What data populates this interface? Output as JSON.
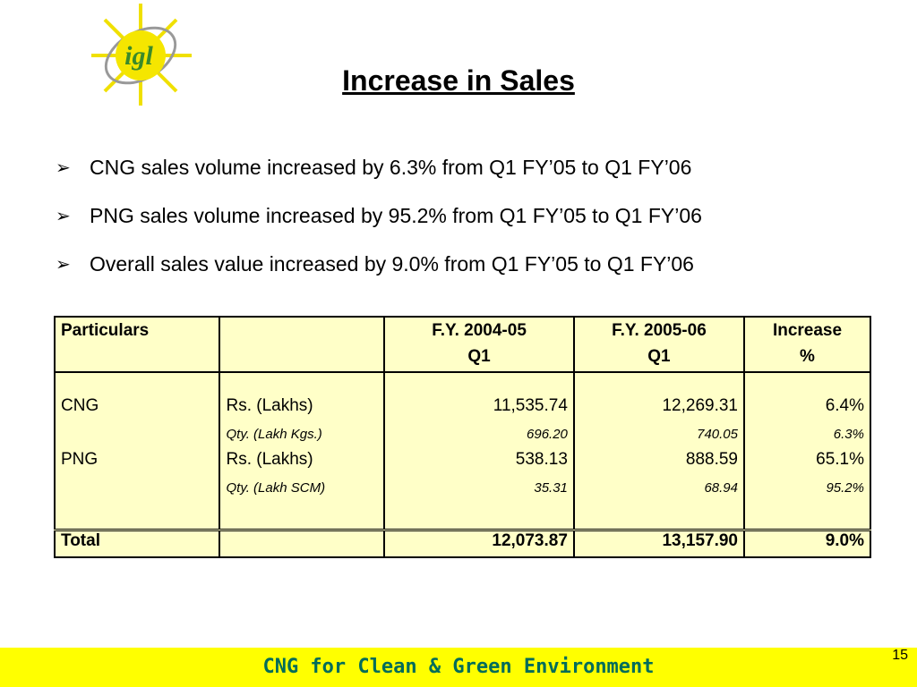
{
  "logo": {
    "text": "igl",
    "icon": "sun-logo"
  },
  "title": "Increase in Sales",
  "bullets": [
    "CNG sales volume increased by 6.3% from Q1 FY’05 to Q1 FY’06",
    "PNG sales volume increased by 95.2% from Q1 FY’05 to Q1 FY’06",
    "Overall sales value increased by 9.0% from Q1 FY’05 to Q1 FY’06"
  ],
  "table": {
    "headers": {
      "particulars": "Particulars",
      "fy1_line1": "F.Y. 2004-05",
      "fy1_line2": "Q1",
      "fy2_line1": "F.Y. 2005-06",
      "fy2_line2": "Q1",
      "inc_line1": "Increase",
      "inc_line2": "%"
    },
    "rows": [
      {
        "name": "CNG",
        "unit": "Rs. (Lakhs)",
        "fy1": "11,535.74",
        "fy2": "12,269.31",
        "inc": "6.4%",
        "sub_unit": "Qty. (Lakh Kgs.)",
        "sub_fy1": "696.20",
        "sub_fy2": "740.05",
        "sub_inc": "6.3%"
      },
      {
        "name": "PNG",
        "unit": "Rs. (Lakhs)",
        "fy1": "538.13",
        "fy2": "888.59",
        "inc": "65.1%",
        "sub_unit": "Qty. (Lakh SCM)",
        "sub_fy1": "35.31",
        "sub_fy2": "68.94",
        "sub_inc": "95.2%"
      }
    ],
    "total": {
      "label": "Total",
      "fy1": "12,073.87",
      "fy2": "13,157.90",
      "inc": "9.0%"
    }
  },
  "footer": {
    "tagline": "CNG for Clean & Green Environment",
    "page_number": "15"
  },
  "colors": {
    "table_bg": "#ffffc8",
    "footer_bg": "#ffff00",
    "tagline": "#006c5a",
    "logo_green": "#3a8a2a",
    "logo_yellow": "#f5e600"
  }
}
